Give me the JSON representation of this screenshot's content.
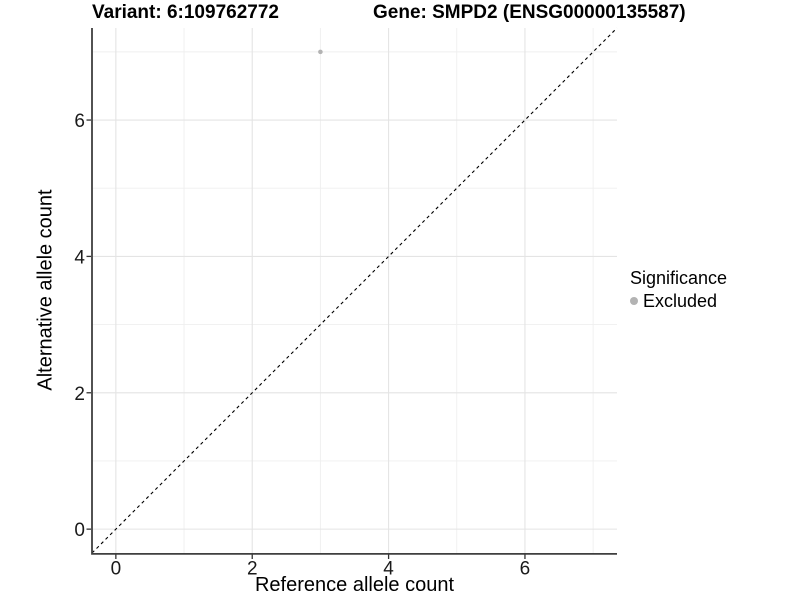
{
  "chart_data": {
    "type": "scatter",
    "title_left": "Variant: 6:109762772",
    "title_right": "Gene: SMPD2 (ENSG00000135587)",
    "xlabel": "Reference allele count",
    "ylabel": "Alternative allele count",
    "xlim": [
      -0.35,
      7.35
    ],
    "ylim": [
      -0.35,
      7.35
    ],
    "x_ticks": {
      "major": [
        0,
        2,
        4,
        6
      ],
      "minor": [
        1,
        3,
        5,
        7
      ]
    },
    "y_ticks": {
      "major": [
        0,
        2,
        4,
        6
      ],
      "minor": [
        1,
        3,
        5,
        7
      ]
    },
    "grid": "major and minor gridlines on white background",
    "identity_line": {
      "slope": 1,
      "intercept": 0,
      "style": "dashed",
      "color": "#000000"
    },
    "series": [
      {
        "name": "Excluded",
        "color": "#b3b3b3",
        "points": [
          {
            "x": 3,
            "y": 7
          }
        ]
      }
    ],
    "legend": {
      "title": "Significance",
      "position": "right",
      "entries": [
        {
          "label": "Excluded",
          "color": "#b3b3b3"
        }
      ]
    }
  },
  "colors": {
    "background": "#ffffff",
    "grid_major": "#e4e4e4",
    "grid_minor": "#efefef",
    "axis_line": "#3f3f3f",
    "tick_mark": "#333333",
    "tick_label": "#1a1a1a",
    "point": "#b3b3b3"
  }
}
